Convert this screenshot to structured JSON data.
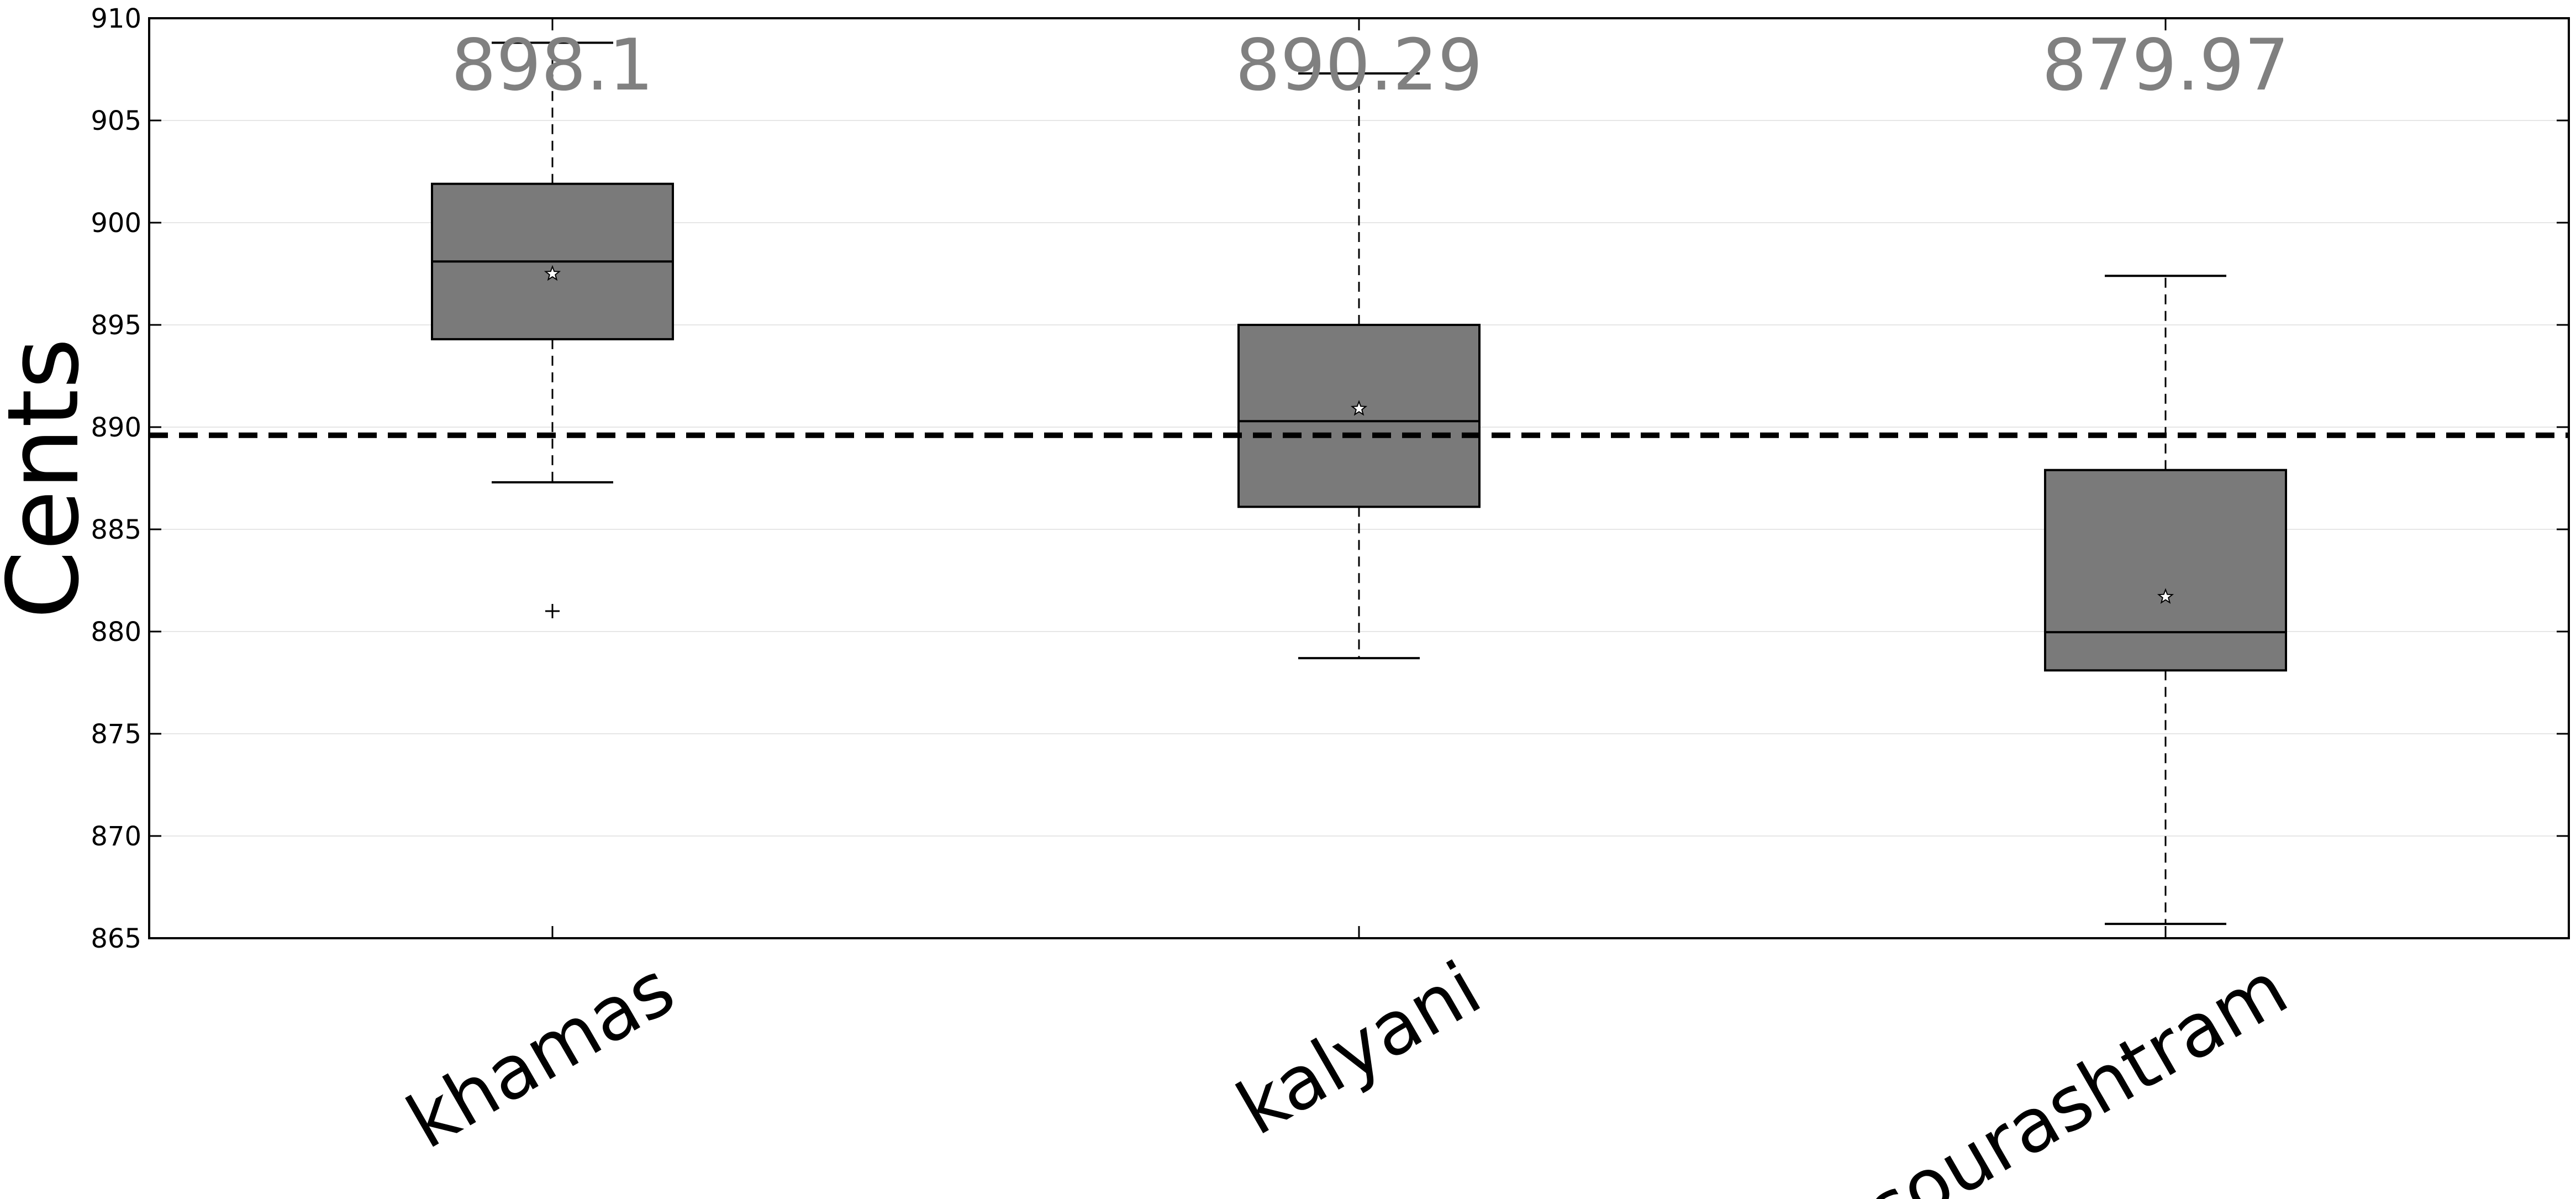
{
  "chart_data": {
    "type": "box",
    "ylabel": "Cents",
    "xlabel": "",
    "title": "",
    "ylim": [
      865,
      910
    ],
    "yticks": [
      865,
      870,
      875,
      880,
      885,
      890,
      895,
      900,
      905,
      910
    ],
    "grid": "horizontal",
    "reference_line": 889.6,
    "categories": [
      "khamas",
      "kalyani",
      "sourashtram"
    ],
    "boxes": [
      {
        "category": "khamas",
        "whisker_low": 887.3,
        "q1": 894.3,
        "median": 898.1,
        "q3": 901.9,
        "whisker_high": 908.8,
        "mean": 897.5,
        "outliers": [
          881.0
        ],
        "median_label": "898.1"
      },
      {
        "category": "kalyani",
        "whisker_low": 878.7,
        "q1": 886.1,
        "median": 890.29,
        "q3": 895.0,
        "whisker_high": 907.3,
        "mean": 890.9,
        "outliers": [],
        "median_label": "890.29"
      },
      {
        "category": "sourashtram",
        "whisker_low": 865.7,
        "q1": 878.1,
        "median": 879.97,
        "q3": 887.9,
        "whisker_high": 897.4,
        "mean": 881.7,
        "outliers": [],
        "median_label": "879.97"
      }
    ],
    "colors": {
      "box_fill": "#7a7a7a",
      "median_label": "#808080",
      "line": "#000000",
      "grid": "#e6e6e6"
    }
  }
}
